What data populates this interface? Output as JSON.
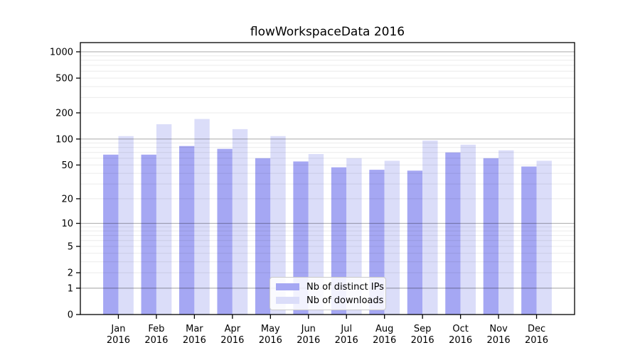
{
  "title": "flowWorkspaceData 2016",
  "colors": {
    "bar_distinct_ips": "#a5a7f3",
    "bar_downloads": "#dbddf9",
    "grid_major": "rgba(0,0,0,0.30)",
    "grid_minor": "rgba(0,0,0,0.08)",
    "axis": "#000000",
    "text": "#000000",
    "legend_border": "#c9c9c9",
    "background": "#ffffff"
  },
  "chart_data": {
    "type": "bar",
    "title": "flowWorkspaceData 2016",
    "y_scale": "log1p",
    "grid": true,
    "legend_position": "lower center",
    "categories": [
      "Jan",
      "Feb",
      "Mar",
      "Apr",
      "May",
      "Jun",
      "Jul",
      "Aug",
      "Sep",
      "Oct",
      "Nov",
      "Dec"
    ],
    "category_year": "2016",
    "y_ticks": [
      0,
      1,
      2,
      5,
      10,
      20,
      50,
      100,
      200,
      500,
      1000
    ],
    "ylim": [
      0,
      1274
    ],
    "xlabel": "",
    "ylabel": "",
    "series": [
      {
        "name": "Nb of distinct IPs",
        "color": "#a5a7f3",
        "values": [
          66,
          66,
          83,
          77,
          60,
          55,
          47,
          44,
          43,
          70,
          60,
          48
        ]
      },
      {
        "name": "Nb of downloads",
        "color": "#dbddf9",
        "values": [
          108,
          148,
          170,
          130,
          108,
          67,
          60,
          56,
          96,
          86,
          74,
          56
        ]
      }
    ]
  }
}
